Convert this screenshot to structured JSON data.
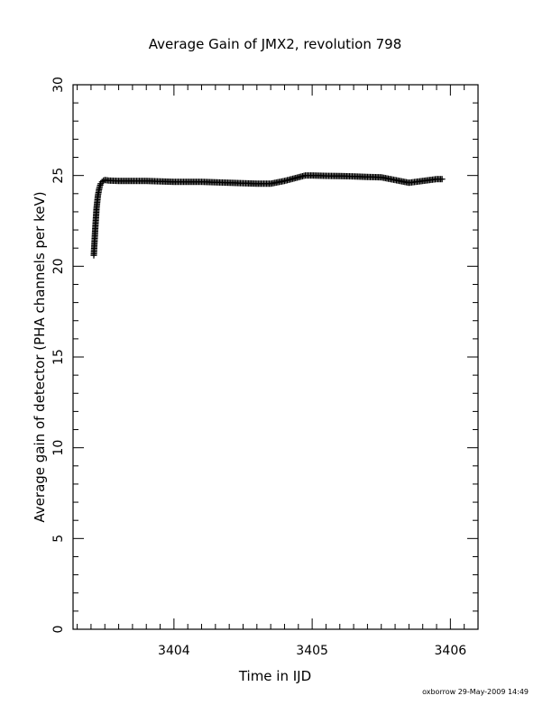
{
  "chart_data": {
    "type": "scatter",
    "title": "Average Gain of JMX2, revolution 798",
    "xlabel": "Time in IJD",
    "ylabel": "Average gain of detector (PHA channels per keV)",
    "xlim": [
      3403.27,
      3406.2
    ],
    "ylim": [
      0,
      30
    ],
    "x_ticks": [
      3404,
      3405,
      3406
    ],
    "x_tick_labels": [
      "3404",
      "3405",
      "3406"
    ],
    "y_ticks": [
      0,
      5,
      10,
      15,
      20,
      25,
      30
    ],
    "y_tick_labels": [
      "0",
      "5",
      "10",
      "15",
      "20",
      "25",
      "30"
    ],
    "marker": "plus",
    "color": "#000000",
    "grid": false,
    "series": [
      {
        "x": [
          3403.42,
          3403.43,
          3403.44,
          3403.45,
          3403.46,
          3403.47,
          3403.48,
          3403.49,
          3403.5,
          3403.53,
          3403.6,
          3403.8,
          3404.0,
          3404.2,
          3404.4,
          3404.6,
          3404.7,
          3404.8,
          3404.9,
          3404.95,
          3405.0,
          3405.1,
          3405.2,
          3405.3,
          3405.4,
          3405.5,
          3405.6,
          3405.7,
          3405.8,
          3405.9,
          3405.94
        ],
        "y": [
          20.6,
          22.0,
          23.2,
          23.9,
          24.3,
          24.55,
          24.65,
          24.72,
          24.75,
          24.72,
          24.7,
          24.7,
          24.65,
          24.65,
          24.6,
          24.55,
          24.55,
          24.7,
          24.9,
          25.0,
          25.0,
          24.98,
          24.97,
          24.95,
          24.92,
          24.9,
          24.75,
          24.6,
          24.7,
          24.8,
          24.8
        ]
      }
    ]
  },
  "footer": {
    "credit": "oxborrow 29-May-2009 14:49"
  }
}
